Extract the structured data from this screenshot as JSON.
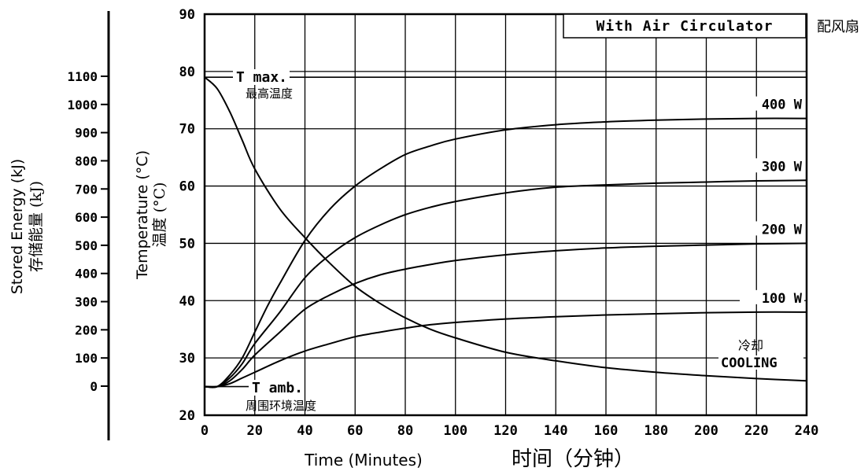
{
  "chart_data": {
    "type": "line",
    "title": "With Air Circulator",
    "title_zh": "配风扇",
    "xlabel": "Time (Minutes)",
    "xlabel_zh": "时间（分钟）",
    "ylabel": "Temperature (°C)",
    "ylabel_zh": "温度 (°C)",
    "y2label": "Stored Energy (kJ)",
    "y2label_zh": "存储能量 (kJ)",
    "xlim": [
      0,
      240
    ],
    "ylim": [
      20,
      90
    ],
    "xticks": [
      "0",
      "20",
      "40",
      "60",
      "80",
      "100",
      "120",
      "140",
      "160",
      "180",
      "200",
      "220",
      "240"
    ],
    "yticks": [
      "20",
      "30",
      "40",
      "50",
      "60",
      "70",
      "80",
      "90"
    ],
    "y2ticks": [
      "0",
      "100",
      "200",
      "300",
      "400",
      "500",
      "600",
      "700",
      "800",
      "900",
      "1000",
      "1100"
    ],
    "grid": true,
    "annotations": {
      "tmax": "T max.",
      "tmax_zh": "最高温度",
      "tmax_value": 79,
      "tamb": "T amb.",
      "tamb_zh": "周围环境温度",
      "tamb_value": 25,
      "cooling": "COOLING",
      "cooling_zh": "冷却"
    },
    "series": [
      {
        "name": "400 W",
        "x": [
          0,
          5,
          10,
          15,
          20,
          25,
          30,
          40,
          50,
          60,
          70,
          80,
          90,
          100,
          120,
          140,
          160,
          180,
          200,
          220,
          240
        ],
        "y": [
          25,
          25,
          27,
          30,
          34.5,
          39,
          43,
          50.5,
          56,
          60,
          63,
          65.5,
          67,
          68.2,
          69.8,
          70.7,
          71.2,
          71.5,
          71.7,
          71.8,
          71.8
        ]
      },
      {
        "name": "300 W",
        "x": [
          0,
          5,
          10,
          15,
          20,
          30,
          40,
          50,
          60,
          70,
          80,
          90,
          100,
          120,
          140,
          160,
          180,
          200,
          220,
          240
        ],
        "y": [
          25,
          25,
          26.5,
          29,
          32.5,
          38,
          44,
          48,
          51,
          53.2,
          55,
          56.3,
          57.3,
          58.8,
          59.8,
          60.2,
          60.5,
          60.7,
          60.9,
          61
        ]
      },
      {
        "name": "200 W",
        "x": [
          0,
          5,
          10,
          15,
          20,
          30,
          40,
          50,
          60,
          70,
          80,
          90,
          100,
          120,
          140,
          160,
          180,
          200,
          220,
          240
        ],
        "y": [
          25,
          25,
          26,
          28,
          30.5,
          34.5,
          38.5,
          41,
          43,
          44.5,
          45.5,
          46.3,
          47,
          48,
          48.7,
          49.2,
          49.5,
          49.7,
          49.9,
          50
        ]
      },
      {
        "name": "100 W",
        "x": [
          0,
          5,
          10,
          15,
          20,
          30,
          40,
          50,
          60,
          70,
          80,
          90,
          100,
          120,
          140,
          160,
          180,
          200,
          220,
          240
        ],
        "y": [
          25,
          25,
          25.5,
          26.5,
          27.5,
          29.5,
          31.2,
          32.5,
          33.7,
          34.5,
          35.2,
          35.8,
          36.2,
          36.8,
          37.2,
          37.5,
          37.7,
          37.9,
          38,
          38
        ]
      },
      {
        "name": "COOLING",
        "x": [
          0,
          5,
          10,
          15,
          20,
          30,
          40,
          50,
          60,
          70,
          80,
          90,
          100,
          120,
          140,
          160,
          180,
          200,
          220,
          240
        ],
        "y": [
          79,
          77,
          73,
          68,
          63,
          56,
          51,
          46.5,
          42.5,
          39.5,
          37,
          35,
          33.5,
          31,
          29.5,
          28.3,
          27.5,
          26.9,
          26.4,
          26
        ]
      }
    ]
  }
}
